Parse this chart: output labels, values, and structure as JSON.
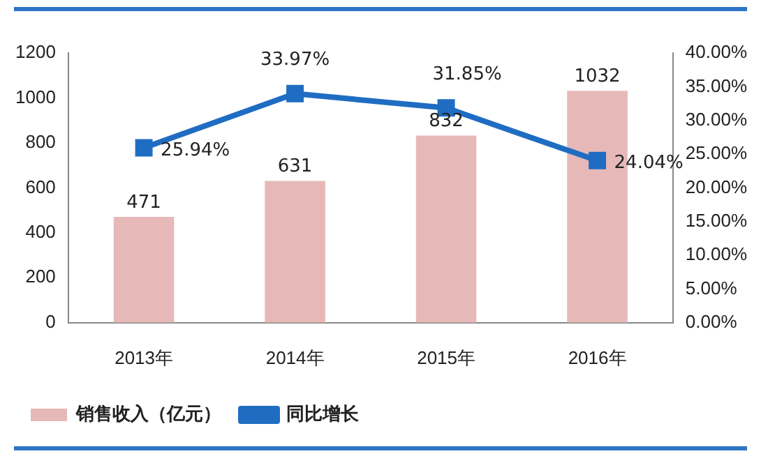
{
  "chart_data": {
    "type": "bar",
    "categories": [
      "2013年",
      "2014年",
      "2015年",
      "2016年"
    ],
    "series": [
      {
        "name": "销售收入（亿元）",
        "color": "#e6b9b8",
        "values": [
          471,
          631,
          832,
          1032
        ],
        "value_labels": [
          "471",
          "631",
          "832",
          "1032"
        ]
      },
      {
        "name": "同比增长",
        "type": "line",
        "axis": "y2",
        "color": "#1f6dc2",
        "values": [
          25.94,
          33.97,
          31.85,
          24.04
        ],
        "value_labels": [
          "25.94%",
          "33.97%",
          "31.85%",
          "24.04%"
        ]
      }
    ],
    "ylim": [
      0,
      1200
    ],
    "yticks": [
      0,
      200,
      400,
      600,
      800,
      1000,
      1200
    ],
    "y2lim": [
      0,
      40
    ],
    "y2ticks": [
      {
        "value": 0,
        "label": "0.00%"
      },
      {
        "value": 5,
        "label": "5.00%"
      },
      {
        "value": 10,
        "label": "10.00%"
      },
      {
        "value": 15,
        "label": "15.00%"
      },
      {
        "value": 20,
        "label": "20.00%"
      },
      {
        "value": 25,
        "label": "25.00%"
      },
      {
        "value": 30,
        "label": "30.00%"
      },
      {
        "value": 35,
        "label": "35.00%"
      },
      {
        "value": 40,
        "label": "40.00%"
      }
    ],
    "grid": false,
    "legend": "bottom",
    "marker": "square",
    "line_style": "solid"
  }
}
